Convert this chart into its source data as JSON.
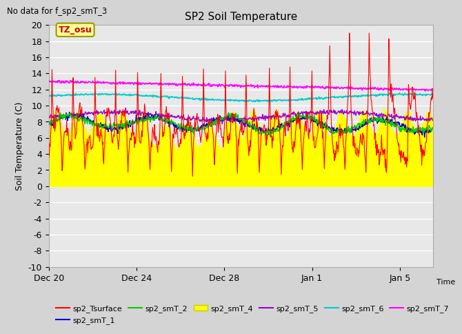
{
  "title": "SP2 Soil Temperature",
  "subtitle": "No data for f_sp2_smT_3",
  "ylabel": "Soil Temperature (C)",
  "xlabel": "Time",
  "ylim": [
    -10,
    20
  ],
  "yticks": [
    -10,
    -8,
    -6,
    -4,
    -2,
    0,
    2,
    4,
    6,
    8,
    10,
    12,
    14,
    16,
    18,
    20
  ],
  "xtick_labels": [
    "Dec 20",
    "Dec 24",
    "Dec 28",
    "Jan 1",
    "Jan 5"
  ],
  "fig_bg_color": "#d4d4d4",
  "plot_bg_color": "#e8e8e8",
  "grid_color": "#ffffff",
  "legend_entries": [
    "sp2_Tsurface",
    "sp2_smT_1",
    "sp2_smT_2",
    "sp2_smT_4",
    "sp2_smT_5",
    "sp2_smT_6",
    "sp2_smT_7"
  ],
  "legend_colors": [
    "#ff0000",
    "#0000cc",
    "#00cc00",
    "#ffff00",
    "#9900cc",
    "#00cccc",
    "#ff00ff"
  ],
  "tz_label": "TZ_osu",
  "tz_box_color": "#ffff99",
  "tz_border_color": "#999900"
}
